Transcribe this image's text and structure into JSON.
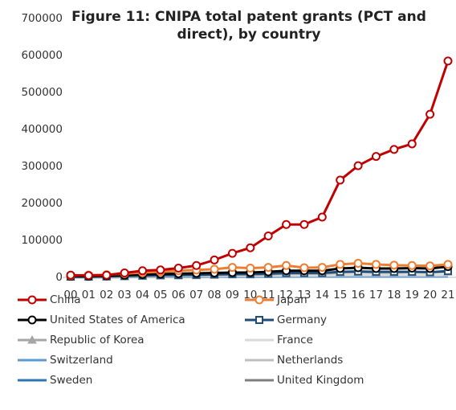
{
  "chart_data": {
    "type": "line",
    "title": "Figure 11: CNIPA total patent grants (PCT and direct), by country",
    "categories": [
      "00",
      "01",
      "02",
      "03",
      "04",
      "05",
      "06",
      "07",
      "08",
      "09",
      "10",
      "11",
      "12",
      "13",
      "14",
      "15",
      "16",
      "17",
      "18",
      "19",
      "20",
      "21"
    ],
    "ylim": [
      0,
      700000
    ],
    "yticks": [
      0,
      100000,
      200000,
      300000,
      400000,
      500000,
      600000,
      700000
    ],
    "grid": false,
    "legend": "bottom",
    "series": [
      {
        "name": "China",
        "color": "#c00000",
        "marker": "circle",
        "values": [
          6000,
          5000,
          6000,
          12000,
          18000,
          20000,
          25000,
          32000,
          47000,
          65000,
          80000,
          112000,
          143000,
          143000,
          163000,
          263000,
          302000,
          327000,
          346000,
          361000,
          441000,
          585000
        ]
      },
      {
        "name": "Japan",
        "color": "#ed7d31",
        "marker": "circle",
        "values": [
          5000,
          6000,
          7000,
          10000,
          13000,
          15000,
          18000,
          20000,
          22000,
          27000,
          25000,
          27000,
          32000,
          26000,
          27000,
          35000,
          38000,
          35000,
          33000,
          32000,
          31000,
          35000
        ]
      },
      {
        "name": "United States of America",
        "color": "#000000",
        "marker": "circle",
        "values": [
          3000,
          3000,
          4000,
          6000,
          8000,
          9000,
          10000,
          11000,
          12000,
          13000,
          13000,
          15000,
          18000,
          18000,
          18000,
          24000,
          26000,
          24000,
          24000,
          25000,
          24000,
          29000
        ]
      },
      {
        "name": "Germany",
        "color": "#1f4e79",
        "marker": "square",
        "values": [
          2000,
          2000,
          3000,
          4000,
          5000,
          6000,
          6000,
          7000,
          8000,
          9000,
          9000,
          10000,
          12000,
          12000,
          12000,
          15000,
          16000,
          15000,
          15000,
          15000,
          14000,
          17000
        ]
      },
      {
        "name": "Republic of Korea",
        "color": "#a5a5a5",
        "marker": "triangle",
        "values": [
          1000,
          1000,
          1000,
          2000,
          3000,
          4000,
          5000,
          5000,
          6000,
          7000,
          7000,
          8000,
          10000,
          10000,
          10000,
          13000,
          14000,
          13000,
          13000,
          14000,
          13000,
          15000
        ]
      },
      {
        "name": "France",
        "color": "#d9d9d9",
        "values": [
          1000,
          1000,
          1000,
          1500,
          2000,
          2500,
          3000,
          3000,
          3500,
          4000,
          4000,
          4500,
          5000,
          5000,
          5000,
          6000,
          6000,
          6000,
          6000,
          6000,
          5500,
          6000
        ]
      },
      {
        "name": "Switzerland",
        "color": "#5b9bd5",
        "values": [
          800,
          800,
          900,
          1200,
          1500,
          1800,
          2000,
          2200,
          2500,
          3000,
          3000,
          3200,
          3500,
          3500,
          3500,
          4000,
          4200,
          4000,
          4000,
          4000,
          3800,
          4200
        ]
      },
      {
        "name": "Netherlands",
        "color": "#bfbfbf",
        "values": [
          800,
          800,
          900,
          1100,
          1400,
          1700,
          1900,
          2000,
          2300,
          2700,
          2700,
          2900,
          3200,
          3100,
          3100,
          3600,
          3800,
          3600,
          3600,
          3500,
          3400,
          3800
        ]
      },
      {
        "name": "Sweden",
        "color": "#2e75b6",
        "values": [
          500,
          500,
          600,
          700,
          900,
          1000,
          1200,
          1300,
          1500,
          1700,
          1700,
          1900,
          2100,
          2100,
          2100,
          2500,
          2600,
          2500,
          2500,
          2500,
          2400,
          2700
        ]
      },
      {
        "name": "United Kingdom",
        "color": "#7f7f7f",
        "values": [
          700,
          700,
          800,
          1000,
          1200,
          1400,
          1600,
          1700,
          1900,
          2200,
          2200,
          2400,
          2700,
          2600,
          2600,
          3100,
          3300,
          3100,
          3100,
          3100,
          3000,
          3400
        ]
      }
    ]
  }
}
